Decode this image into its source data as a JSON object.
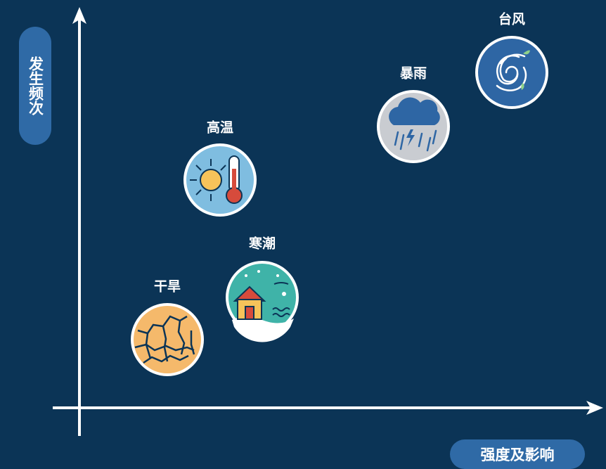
{
  "axes": {
    "y_label": "发生频次",
    "x_label": "强度及影响"
  },
  "nodes": [
    {
      "label": "台风"
    },
    {
      "label": "暴雨"
    },
    {
      "label": "高温"
    },
    {
      "label": "寒潮"
    },
    {
      "label": "干旱"
    }
  ]
}
